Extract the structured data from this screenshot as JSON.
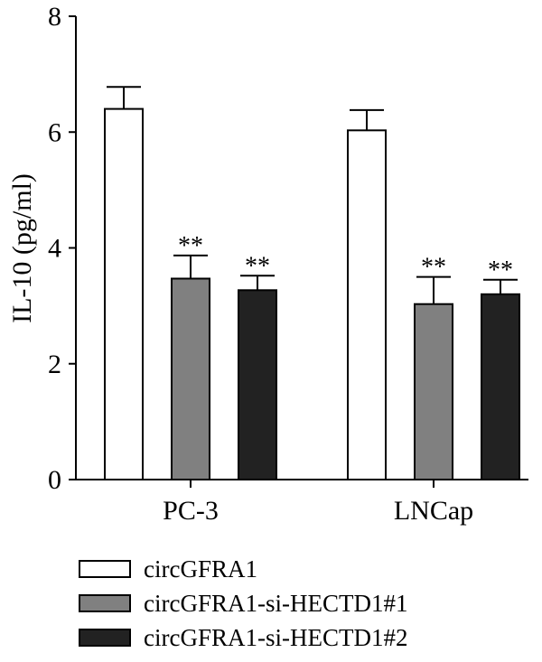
{
  "chart_data": {
    "type": "bar",
    "ylabel": "IL-10 (pg/ml)",
    "ylim": [
      0,
      8
    ],
    "yticks": [
      "0",
      "2",
      "4",
      "6",
      "8"
    ],
    "categories": [
      "PC-3",
      "LNCap"
    ],
    "series": [
      {
        "name": "circGFRA1",
        "color": "#ffffff",
        "values": [
          6.4,
          6.03
        ],
        "errors": [
          0.38,
          0.35
        ],
        "significance": [
          "",
          ""
        ]
      },
      {
        "name": "circGFRA1-si-HECTD1#1",
        "color": "#808080",
        "values": [
          3.47,
          3.03
        ],
        "errors": [
          0.4,
          0.47
        ],
        "significance": [
          "**",
          "**"
        ]
      },
      {
        "name": "circGFRA1-si-HECTD1#2",
        "color": "#222222",
        "values": [
          3.27,
          3.2
        ],
        "errors": [
          0.25,
          0.25
        ],
        "significance": [
          "**",
          "**"
        ]
      }
    ],
    "grid": false,
    "legend_position": "bottom-left"
  }
}
